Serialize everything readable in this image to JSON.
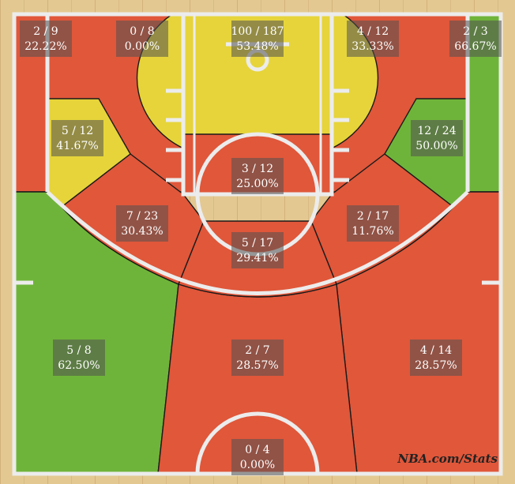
{
  "chart_data": {
    "type": "shot-chart",
    "zones": [
      {
        "key": "left-corner-three",
        "label_made_att": "2 / 9",
        "label_pct": "22.22%",
        "made": 2,
        "attempts": 9,
        "pct": 22.22,
        "color": "#e0573a"
      },
      {
        "key": "left-baseline-mid",
        "label_made_att": "0 / 8",
        "label_pct": "0.00%",
        "made": 0,
        "attempts": 8,
        "pct": 0.0,
        "color": "#e0573a"
      },
      {
        "key": "restricted-area",
        "label_made_att": "100 / 187",
        "label_pct": "53.48%",
        "made": 100,
        "attempts": 187,
        "pct": 53.48,
        "color": "#e6d43a"
      },
      {
        "key": "right-baseline-mid",
        "label_made_att": "4 / 12",
        "label_pct": "33.33%",
        "made": 4,
        "attempts": 12,
        "pct": 33.33,
        "color": "#e0573a"
      },
      {
        "key": "right-corner-three",
        "label_made_att": "2 / 3",
        "label_pct": "66.67%",
        "made": 2,
        "attempts": 3,
        "pct": 66.67,
        "color": "#6fb43a"
      },
      {
        "key": "left-wing-mid",
        "label_made_att": "5 / 12",
        "label_pct": "41.67%",
        "made": 5,
        "attempts": 12,
        "pct": 41.67,
        "color": "#e6d43a"
      },
      {
        "key": "right-wing-mid",
        "label_made_att": "12 / 24",
        "label_pct": "50.00%",
        "made": 12,
        "attempts": 24,
        "pct": 50.0,
        "color": "#6fb43a"
      },
      {
        "key": "paint-non-ra",
        "label_made_att": "3 / 12",
        "label_pct": "25.00%",
        "made": 3,
        "attempts": 12,
        "pct": 25.0,
        "color": "#e0573a"
      },
      {
        "key": "left-elbow-mid",
        "label_made_att": "7 / 23",
        "label_pct": "30.43%",
        "made": 7,
        "attempts": 23,
        "pct": 30.43,
        "color": "#e0573a"
      },
      {
        "key": "right-elbow-mid",
        "label_made_att": "2 / 17",
        "label_pct": "11.76%",
        "made": 2,
        "attempts": 17,
        "pct": 11.76,
        "color": "#e0573a"
      },
      {
        "key": "top-key-mid",
        "label_made_att": "5 / 17",
        "label_pct": "29.41%",
        "made": 5,
        "attempts": 17,
        "pct": 29.41,
        "color": "#e0573a"
      },
      {
        "key": "left-wing-three",
        "label_made_att": "5 / 8",
        "label_pct": "62.50%",
        "made": 5,
        "attempts": 8,
        "pct": 62.5,
        "color": "#6fb43a"
      },
      {
        "key": "top-three",
        "label_made_att": "2 / 7",
        "label_pct": "28.57%",
        "made": 2,
        "attempts": 7,
        "pct": 28.57,
        "color": "#e0573a"
      },
      {
        "key": "right-wing-three",
        "label_made_att": "4 / 14",
        "label_pct": "28.57%",
        "made": 4,
        "attempts": 14,
        "pct": 28.57,
        "color": "#e0573a"
      },
      {
        "key": "backcourt",
        "label_made_att": "0 / 4",
        "label_pct": "0.00%",
        "made": 0,
        "attempts": 4,
        "pct": 0.0,
        "color": "#e0573a"
      }
    ],
    "credit": "NBA.com/Stats"
  },
  "colors": {
    "cold": "#e0573a",
    "average": "#e6d43a",
    "hot": "#6fb43a",
    "wood": "#e2c690",
    "lines": "#ececec"
  }
}
